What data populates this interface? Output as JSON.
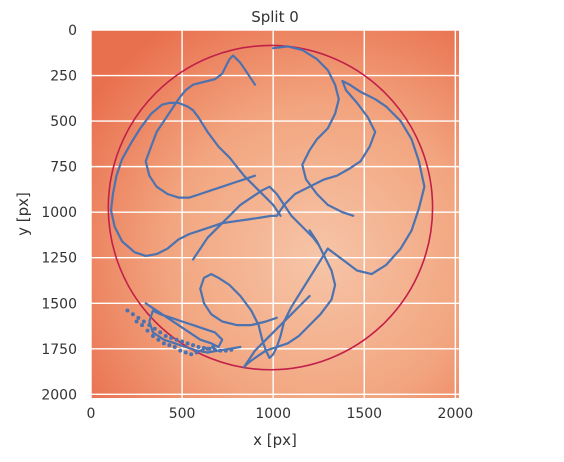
{
  "chart_data": {
    "type": "scatter",
    "title": "Split 0",
    "xlabel": "x [px]",
    "ylabel": "y [px]",
    "xlim": [
      0,
      2020
    ],
    "ylim": [
      2020,
      0
    ],
    "y_inverted": true,
    "grid": true,
    "x_ticks": [
      0,
      500,
      1000,
      1500,
      2000
    ],
    "y_ticks": [
      0,
      250,
      500,
      750,
      1000,
      1250,
      1500,
      1750,
      2000
    ],
    "background_image": "petri-dish-arena",
    "arena_circle": {
      "cx": 985,
      "cy": 975,
      "r": 890,
      "color": "#c0204a"
    },
    "series": [
      {
        "color": "#4c72b0",
        "x": [
          1040,
          1000,
          920,
          840,
          760,
          700,
          640,
          590,
          560,
          530,
          480,
          430,
          390,
          330,
          270,
          220,
          170,
          140,
          120,
          110,
          130,
          170,
          240,
          300,
          360,
          420,
          480,
          540,
          600,
          660,
          720,
          790,
          860,
          930,
          990,
          1020
        ],
        "y": [
          1020,
          960,
          880,
          800,
          700,
          640,
          560,
          480,
          440,
          420,
          400,
          400,
          410,
          460,
          540,
          620,
          710,
          800,
          900,
          990,
          1080,
          1160,
          1220,
          1240,
          1230,
          1200,
          1150,
          1120,
          1100,
          1080,
          1060,
          1050,
          1040,
          1030,
          1020,
          1020
        ]
      },
      {
        "color": "#4c72b0",
        "x": [
          1020,
          1060,
          1120,
          1200,
          1280,
          1350,
          1420,
          1480,
          1530,
          1560,
          1520,
          1460,
          1400,
          1380,
          1420,
          1480,
          1560,
          1620,
          1700,
          1760,
          1800,
          1830,
          1800,
          1760,
          1700,
          1620,
          1540,
          1460,
          1380,
          1300
        ],
        "y": [
          1020,
          960,
          900,
          860,
          820,
          800,
          760,
          720,
          640,
          560,
          480,
          400,
          330,
          280,
          300,
          340,
          380,
          420,
          500,
          600,
          720,
          860,
          980,
          1100,
          1200,
          1290,
          1340,
          1320,
          1260,
          1200
        ]
      },
      {
        "color": "#4c72b0",
        "x": [
          1300,
          1250,
          1200,
          1150,
          1100,
          1060,
          1040,
          1020,
          1000,
          980,
          960,
          940,
          920,
          880,
          820,
          760,
          700,
          660,
          620,
          600,
          620,
          660,
          720,
          800,
          880,
          960,
          1020
        ],
        "y": [
          1200,
          1280,
          1360,
          1440,
          1520,
          1600,
          1680,
          1740,
          1780,
          1800,
          1760,
          1700,
          1620,
          1540,
          1460,
          1400,
          1360,
          1340,
          1360,
          1420,
          1500,
          1560,
          1600,
          1620,
          1620,
          1600,
          1580
        ]
      },
      {
        "color": "#4c72b0",
        "x": [
          900,
          860,
          820,
          780,
          760,
          740,
          720,
          680,
          640,
          600,
          560,
          520,
          480,
          440,
          400,
          360,
          330,
          300,
          320,
          360,
          420,
          480,
          540,
          600,
          660,
          720,
          780,
          840,
          900
        ],
        "y": [
          300,
          240,
          180,
          140,
          160,
          200,
          240,
          270,
          280,
          290,
          300,
          330,
          380,
          440,
          500,
          560,
          640,
          720,
          800,
          860,
          900,
          920,
          920,
          900,
          880,
          860,
          840,
          820,
          800
        ]
      },
      {
        "color": "#4c72b0",
        "x": [
          1200,
          1240,
          1280,
          1320,
          1340,
          1320,
          1260,
          1200,
          1140,
          1080,
          1020,
          960,
          900,
          860,
          840,
          860,
          900,
          960,
          1020,
          1080,
          1140,
          1200
        ],
        "y": [
          1100,
          1160,
          1240,
          1320,
          1400,
          1480,
          1560,
          1620,
          1680,
          1720,
          1740,
          1760,
          1800,
          1830,
          1850,
          1820,
          1760,
          1700,
          1640,
          1580,
          1520,
          1460
        ]
      },
      {
        "color": "#4c72b0",
        "x": [
          300,
          360,
          420,
          480,
          540,
          600,
          660,
          700,
          720,
          680,
          620,
          560,
          500,
          440,
          380,
          340,
          320,
          340,
          400,
          460,
          520,
          580,
          640,
          700,
          760,
          820
        ],
        "y": [
          1500,
          1540,
          1580,
          1620,
          1660,
          1700,
          1720,
          1740,
          1700,
          1660,
          1640,
          1620,
          1600,
          1580,
          1560,
          1540,
          1600,
          1660,
          1700,
          1720,
          1740,
          1760,
          1770,
          1760,
          1750,
          1740
        ]
      },
      {
        "color": "#4c72b0",
        "x": [
          1000,
          1080,
          1160,
          1240,
          1300,
          1340,
          1360,
          1340,
          1300,
          1240,
          1200,
          1160,
          1180,
          1240,
          1300,
          1380,
          1440
        ],
        "y": [
          100,
          90,
          110,
          160,
          220,
          300,
          380,
          460,
          540,
          600,
          660,
          740,
          820,
          900,
          960,
          1000,
          1020
        ]
      },
      {
        "color": "#4c72b0",
        "x": [
          560,
          600,
          640,
          700,
          760,
          820,
          880,
          940,
          980,
          1020,
          1060,
          1100,
          1140,
          1180,
          1220,
          1250
        ],
        "y": [
          1260,
          1200,
          1140,
          1080,
          1020,
          960,
          920,
          880,
          860,
          900,
          960,
          1020,
          1060,
          1100,
          1140,
          1180
        ]
      }
    ],
    "cluster_points": {
      "x": [
        200,
        230,
        260,
        290,
        320,
        350,
        380,
        410,
        440,
        470,
        500,
        530,
        560,
        590,
        620,
        650,
        680,
        710,
        740,
        770,
        250,
        280,
        310,
        340,
        370,
        400,
        430,
        460,
        490,
        520,
        550,
        580,
        610,
        640,
        670
      ],
      "y": [
        1540,
        1560,
        1580,
        1600,
        1620,
        1640,
        1660,
        1680,
        1690,
        1700,
        1710,
        1720,
        1730,
        1740,
        1745,
        1750,
        1755,
        1760,
        1760,
        1755,
        1600,
        1620,
        1650,
        1680,
        1700,
        1720,
        1730,
        1740,
        1760,
        1770,
        1780,
        1770,
        1760,
        1750,
        1740
      ]
    }
  }
}
